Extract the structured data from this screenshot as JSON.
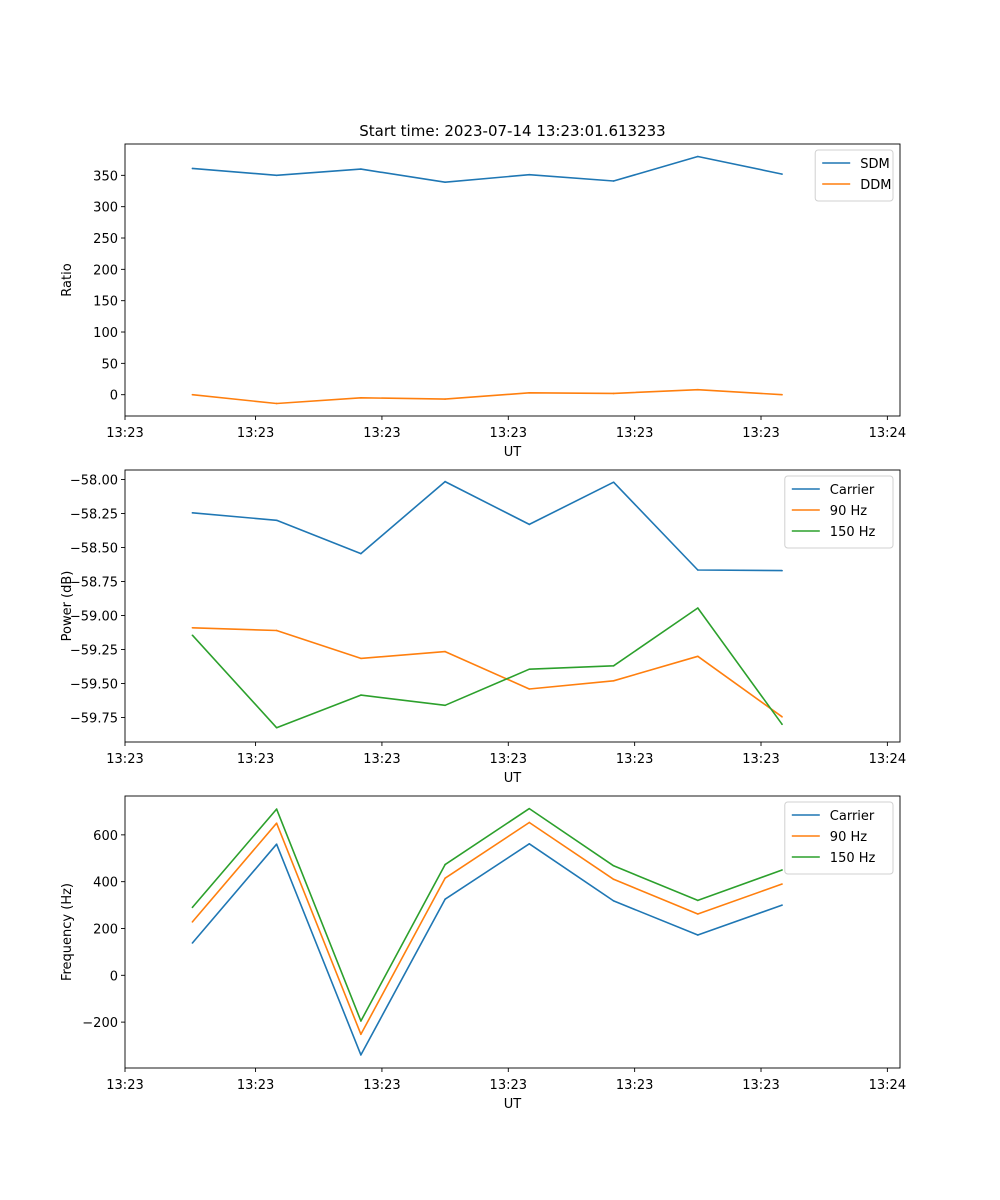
{
  "figure": {
    "title": "Start time: 2023-07-14 13:23:01.613233"
  },
  "colors": {
    "blue": "#1f77b4",
    "orange": "#ff7f0e",
    "green": "#2ca02c"
  },
  "chart_data": [
    {
      "type": "line",
      "title": "Start time: 2023-07-14 13:23:01.613233",
      "xlabel": "UT",
      "ylabel": "Ratio",
      "x": [
        1,
        2,
        3,
        4,
        5,
        6,
        7,
        8
      ],
      "xlim": [
        0.2,
        9.4
      ],
      "xticks": [
        0.2,
        1.75,
        3.25,
        4.75,
        6.25,
        7.75,
        9.25
      ],
      "xticklabels": [
        "13:23",
        "13:23",
        "13:23",
        "13:23",
        "13:23",
        "13:23",
        "13:24"
      ],
      "ylim": [
        -34,
        400
      ],
      "yticks": [
        0,
        50,
        100,
        150,
        200,
        250,
        300,
        350
      ],
      "yticklabels": [
        "0",
        "50",
        "100",
        "150",
        "200",
        "250",
        "300",
        "350"
      ],
      "legend": "top-right",
      "series": [
        {
          "name": "SDM",
          "color": "#1f77b4",
          "values": [
            361,
            350,
            360,
            339,
            351,
            341,
            380,
            352
          ]
        },
        {
          "name": "DDM",
          "color": "#ff7f0e",
          "values": [
            0,
            -14,
            -5,
            -7,
            3,
            2,
            8,
            0
          ]
        }
      ]
    },
    {
      "type": "line",
      "xlabel": "UT",
      "ylabel": "Power (dB)",
      "x": [
        1,
        2,
        3,
        4,
        5,
        6,
        7,
        8
      ],
      "xlim": [
        0.2,
        9.4
      ],
      "xticks": [
        0.2,
        1.75,
        3.25,
        4.75,
        6.25,
        7.75,
        9.25
      ],
      "xticklabels": [
        "13:23",
        "13:23",
        "13:23",
        "13:23",
        "13:23",
        "13:23",
        "13:24"
      ],
      "ylim": [
        -59.93,
        -57.93
      ],
      "yticks": [
        -59.75,
        -59.5,
        -59.25,
        -59.0,
        -58.75,
        -58.5,
        -58.25,
        -58.0
      ],
      "yticklabels": [
        "−59.75",
        "−59.50",
        "−59.25",
        "−59.00",
        "−58.75",
        "−58.50",
        "−58.25",
        "−58.00"
      ],
      "legend": "top-right",
      "series": [
        {
          "name": "Carrier",
          "color": "#1f77b4",
          "values": [
            -58.245,
            -58.3,
            -58.545,
            -58.015,
            -58.33,
            -58.02,
            -58.665,
            -58.67
          ]
        },
        {
          "name": "90 Hz",
          "color": "#ff7f0e",
          "values": [
            -59.09,
            -59.11,
            -59.315,
            -59.265,
            -59.54,
            -59.48,
            -59.3,
            -59.745
          ]
        },
        {
          "name": "150 Hz",
          "color": "#2ca02c",
          "values": [
            -59.145,
            -59.825,
            -59.585,
            -59.66,
            -59.395,
            -59.37,
            -58.945,
            -59.8
          ]
        }
      ]
    },
    {
      "type": "line",
      "xlabel": "UT",
      "ylabel": "Frequency (Hz)",
      "x": [
        1,
        2,
        3,
        4,
        5,
        6,
        7,
        8
      ],
      "xlim": [
        0.2,
        9.4
      ],
      "xticks": [
        0.2,
        1.75,
        3.25,
        4.75,
        6.25,
        7.75,
        9.25
      ],
      "xticklabels": [
        "13:23",
        "13:23",
        "13:23",
        "13:23",
        "13:23",
        "13:23",
        "13:24"
      ],
      "ylim": [
        -396,
        766
      ],
      "yticks": [
        -200,
        0,
        200,
        400,
        600
      ],
      "yticklabels": [
        "−200",
        "0",
        "200",
        "400",
        "600"
      ],
      "legend": "top-right",
      "series": [
        {
          "name": "Carrier",
          "color": "#1f77b4",
          "values": [
            138,
            560,
            -340,
            325,
            562,
            318,
            172,
            300
          ]
        },
        {
          "name": "90 Hz",
          "color": "#ff7f0e",
          "values": [
            228,
            650,
            -252,
            415,
            653,
            410,
            262,
            390
          ]
        },
        {
          "name": "150 Hz",
          "color": "#2ca02c",
          "values": [
            290,
            710,
            -195,
            473,
            712,
            468,
            320,
            450
          ]
        }
      ]
    }
  ]
}
